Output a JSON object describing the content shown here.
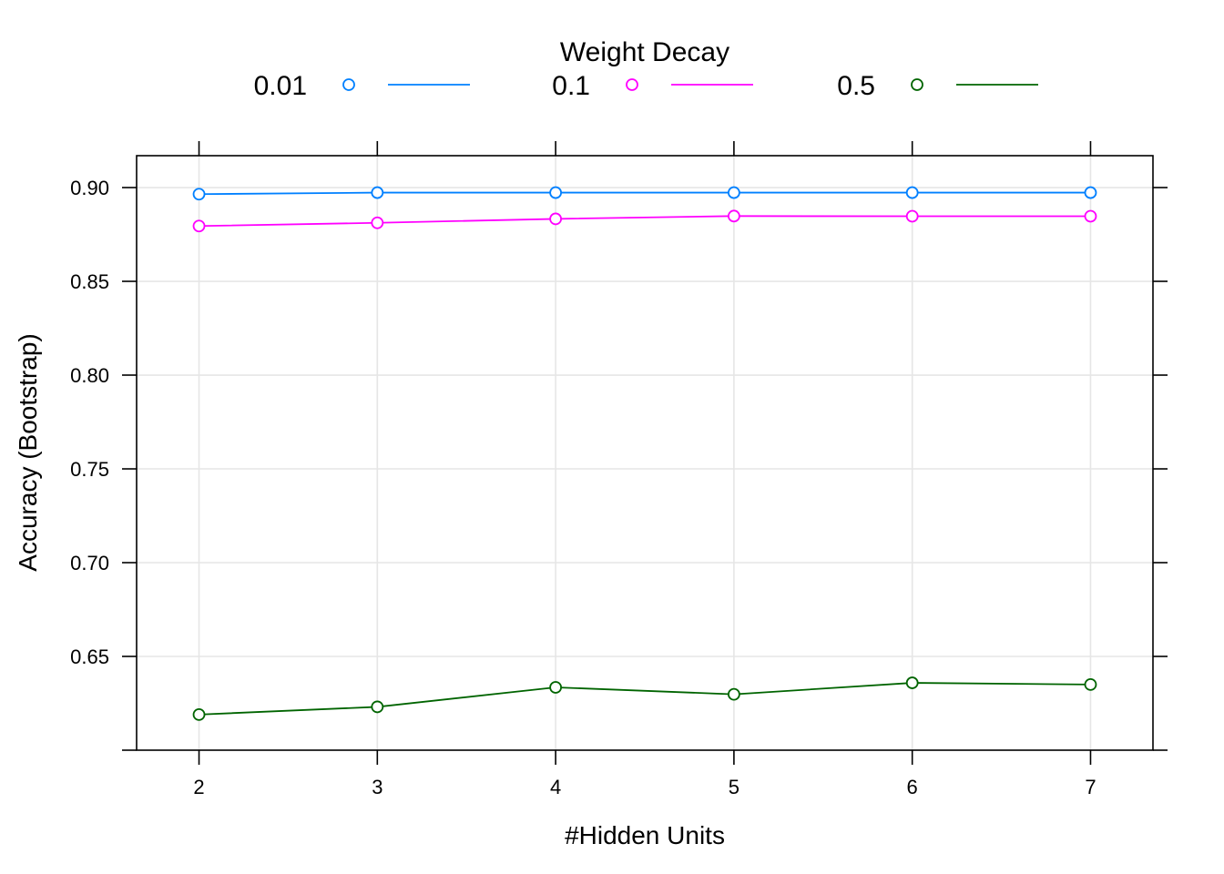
{
  "chart_data": {
    "type": "line",
    "xlabel": "#Hidden Units",
    "ylabel": "Accuracy (Bootstrap)",
    "x": [
      2,
      3,
      4,
      5,
      6,
      7
    ],
    "x_ticks": [
      "2",
      "3",
      "4",
      "5",
      "6",
      "7"
    ],
    "xlim": [
      1.65,
      7.35
    ],
    "ylim": [
      0.6,
      0.917
    ],
    "y_ticks": [
      "0.65",
      "0.70",
      "0.75",
      "0.80",
      "0.85",
      "0.90"
    ],
    "grid": true,
    "legend": {
      "title": "Weight Decay",
      "position": "top"
    },
    "series": [
      {
        "name": "0.01",
        "color": "#0080ff",
        "values": [
          0.8965,
          0.8973,
          0.8973,
          0.8973,
          0.8973,
          0.8973
        ]
      },
      {
        "name": "0.1",
        "color": "#ff00ff",
        "values": [
          0.8795,
          0.8812,
          0.8833,
          0.8848,
          0.8847,
          0.8847
        ]
      },
      {
        "name": "0.5",
        "color": "#006400",
        "values": [
          0.619,
          0.6231,
          0.6335,
          0.6298,
          0.6359,
          0.635
        ]
      }
    ]
  }
}
